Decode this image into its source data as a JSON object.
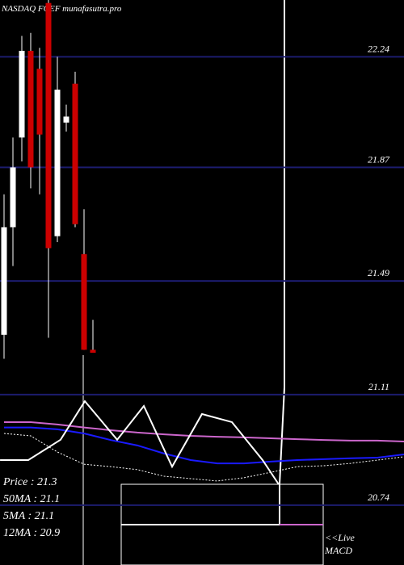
{
  "chart_data": {
    "type": "candlestick",
    "title": "NASDAQ FCEF munafasutra.pro",
    "ylim": [
      20.54,
      22.43
    ],
    "yticks": [
      22.24,
      21.87,
      21.49,
      21.11,
      20.74
    ],
    "grid": true,
    "grid_color": "#1c1c6e",
    "up_color": "#ffffff",
    "down_color": "#cc0000",
    "open": [
      21.31,
      21.67,
      21.97,
      22.26,
      22.2,
      22.42,
      21.64,
      22.02,
      22.15,
      21.58,
      21.26
    ],
    "high": [
      21.78,
      21.97,
      22.31,
      22.32,
      22.27,
      22.43,
      22.24,
      22.08,
      22.19,
      21.73,
      21.36
    ],
    "low": [
      21.23,
      21.54,
      21.89,
      21.8,
      21.78,
      21.3,
      21.62,
      21.99,
      21.67,
      21.26,
      21.25
    ],
    "close": [
      21.67,
      21.87,
      22.26,
      21.87,
      21.98,
      21.6,
      22.13,
      22.04,
      21.68,
      21.26,
      21.25
    ],
    "lines": [
      {
        "color": "#cc66cc",
        "x": [
          0,
          3,
          6,
          9,
          12,
          15,
          18,
          21,
          24,
          27,
          30,
          33,
          36,
          39,
          42,
          45
        ],
        "values": [
          21.018,
          21.018,
          21.01,
          21.0,
          20.991,
          20.983,
          20.977,
          20.972,
          20.969,
          20.967,
          20.964,
          20.961,
          20.958,
          20.956,
          20.956,
          20.953
        ]
      },
      {
        "color": "#1a1aff",
        "x": [
          0,
          3,
          6,
          9,
          12,
          15,
          18,
          21,
          24,
          27,
          30,
          33,
          36,
          39,
          42,
          45
        ],
        "values": [
          21.0,
          21.0,
          20.994,
          20.98,
          20.958,
          20.94,
          20.913,
          20.891,
          20.88,
          20.88,
          20.886,
          20.891,
          20.894,
          20.897,
          20.899,
          20.91
        ]
      },
      {
        "color": "#ffffff",
        "dashed": true,
        "x": [
          0,
          3,
          6,
          9,
          12,
          15,
          18,
          21,
          24,
          27,
          30,
          33,
          36,
          39,
          42,
          45
        ],
        "values": [
          20.98,
          20.972,
          20.918,
          20.877,
          20.869,
          20.859,
          20.837,
          20.829,
          20.821,
          20.832,
          20.85,
          20.869,
          20.872,
          20.88,
          20.891,
          20.902
        ]
      },
      {
        "color": "#ffffff",
        "x": [
          -0.45,
          2.73,
          6.36,
          9.09,
          12.73,
          15.73,
          18.91,
          22.27,
          25.64,
          29.09,
          30.9
        ],
        "values": [
          20.891,
          20.891,
          20.959,
          21.088,
          20.959,
          21.072,
          20.869,
          21.045,
          21.018,
          20.891,
          20.81
        ]
      }
    ],
    "legend": [
      "Price   : 21.3",
      "50MA : 21.1",
      "5MA : 21.1",
      "12MA : 20.9"
    ],
    "live": "<<Live",
    "macd": "MACD"
  }
}
